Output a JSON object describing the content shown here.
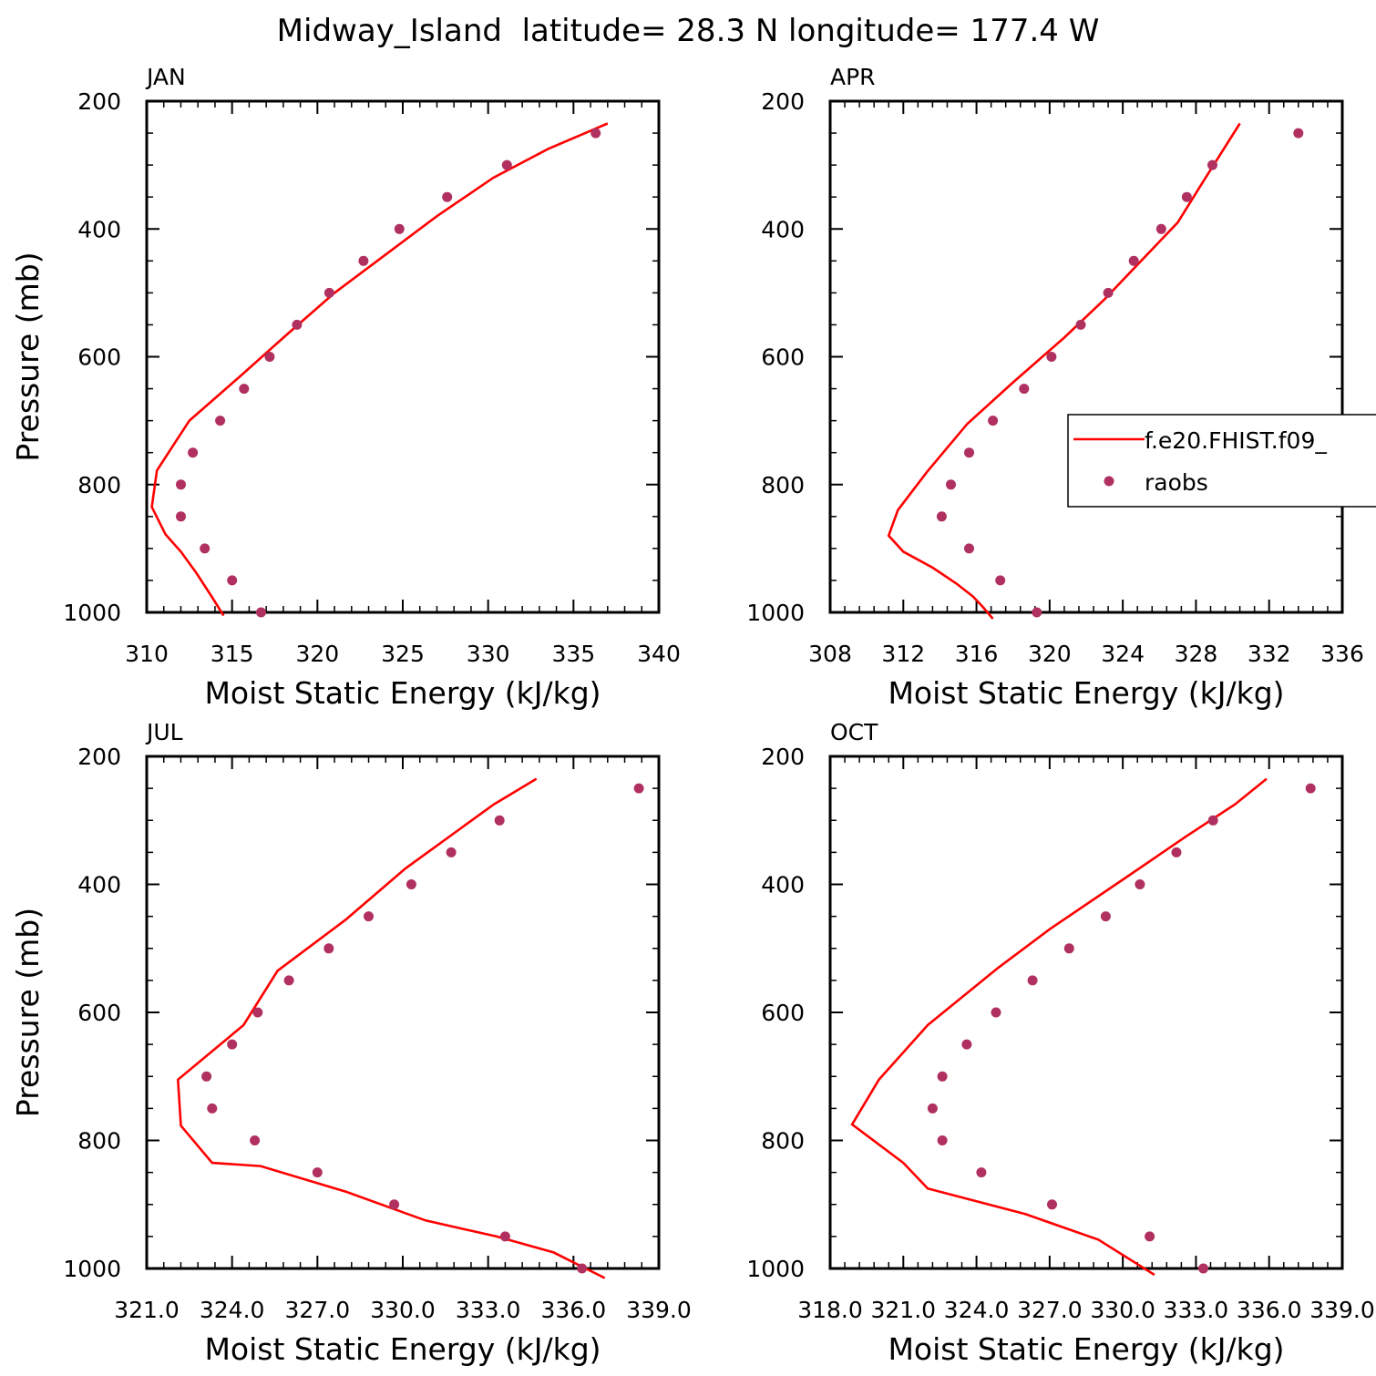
{
  "figure": {
    "title": "Midway_Island  latitude= 28.3 N longitude= 177.4 W"
  },
  "legend": {
    "model_label": "f.e20.FHIST.f09_",
    "obs_label": "raobs",
    "placement": "right side of APR panel, clipped by figure edge"
  },
  "colors": {
    "model_line": "#ff0000",
    "obs_points": "#b03060",
    "axes": "#000000"
  },
  "chart_data": [
    {
      "type": "line",
      "panel": "JAN",
      "title": "JAN",
      "xlabel": "Moist Static Energy (kJ/kg)",
      "ylabel": "Pressure (mb)",
      "xlim": [
        310,
        340
      ],
      "ylim": [
        1000,
        200
      ],
      "y_reversed": true,
      "xticks": [
        "310",
        "315",
        "320",
        "325",
        "330",
        "335",
        "340"
      ],
      "yticks": [
        "200",
        "400",
        "600",
        "800",
        "1000"
      ],
      "series": [
        {
          "kind": "line",
          "x": [
            314.5,
            313.8,
            312.9,
            312.0,
            311.1,
            310.3,
            310.6,
            312.5,
            315.5,
            318.3,
            321.0,
            324.0,
            327.0,
            330.3,
            333.5,
            337.0
          ],
          "y": [
            1005,
            975,
            938,
            905,
            878,
            835,
            778,
            700,
            630,
            563,
            500,
            440,
            380,
            320,
            275,
            235
          ]
        },
        {
          "kind": "scatter",
          "x": [
            316.7,
            315.0,
            313.4,
            312.0,
            312.0,
            312.7,
            314.3,
            315.7,
            317.2,
            318.8,
            320.7,
            322.7,
            324.8,
            327.6,
            331.1,
            336.3
          ],
          "y": [
            1000,
            950,
            900,
            850,
            800,
            750,
            700,
            650,
            600,
            550,
            500,
            450,
            400,
            350,
            300,
            250
          ]
        }
      ]
    },
    {
      "type": "line",
      "panel": "APR",
      "title": "APR",
      "xlabel": "Moist Static Energy (kJ/kg)",
      "ylabel": "",
      "xlim": [
        308,
        336
      ],
      "ylim": [
        1000,
        200
      ],
      "y_reversed": true,
      "xticks": [
        "308",
        "312",
        "316",
        "320",
        "324",
        "328",
        "332",
        "336"
      ],
      "yticks": [
        "200",
        "400",
        "600",
        "800",
        "1000"
      ],
      "series": [
        {
          "kind": "line",
          "x": [
            316.9,
            316.3,
            315.8,
            314.9,
            313.6,
            312.0,
            311.2,
            311.7,
            313.3,
            315.5,
            318.0,
            320.8,
            323.0,
            325.0,
            327.0,
            328.3,
            330.4
          ],
          "y": [
            1010,
            990,
            975,
            955,
            930,
            905,
            880,
            840,
            780,
            705,
            640,
            570,
            510,
            450,
            390,
            330,
            235
          ]
        },
        {
          "kind": "scatter",
          "x": [
            319.3,
            317.3,
            315.6,
            314.1,
            314.6,
            315.6,
            316.9,
            318.6,
            320.1,
            321.7,
            323.2,
            324.6,
            326.1,
            327.5,
            328.9,
            333.6
          ],
          "y": [
            1000,
            950,
            900,
            850,
            800,
            750,
            700,
            650,
            600,
            550,
            500,
            450,
            400,
            350,
            300,
            250
          ]
        }
      ]
    },
    {
      "type": "line",
      "panel": "JUL",
      "title": "JUL",
      "xlabel": "Moist Static Energy (kJ/kg)",
      "ylabel": "Pressure (mb)",
      "xlim": [
        321,
        339
      ],
      "ylim": [
        1000,
        200
      ],
      "y_reversed": true,
      "xticks": [
        "321.0",
        "324.0",
        "327.0",
        "330.0",
        "333.0",
        "336.0",
        "339.0"
      ],
      "yticks": [
        "200",
        "400",
        "600",
        "800",
        "1000"
      ],
      "series": [
        {
          "kind": "line",
          "x": [
            337.1,
            335.3,
            333.3,
            330.8,
            328.0,
            325.0,
            323.3,
            322.2,
            322.1,
            324.4,
            325.6,
            328.0,
            330.1,
            333.2,
            334.7
          ],
          "y": [
            1015,
            975,
            950,
            925,
            880,
            840,
            835,
            777,
            705,
            620,
            535,
            455,
            375,
            275,
            235
          ]
        },
        {
          "kind": "scatter",
          "x": [
            336.3,
            333.6,
            329.7,
            327.0,
            324.8,
            323.3,
            323.1,
            324.0,
            324.9,
            326.0,
            327.4,
            328.8,
            330.3,
            331.7,
            333.4,
            338.3
          ],
          "y": [
            1000,
            950,
            900,
            850,
            800,
            750,
            700,
            650,
            600,
            550,
            500,
            450,
            400,
            350,
            300,
            250
          ]
        }
      ]
    },
    {
      "type": "line",
      "panel": "OCT",
      "title": "OCT",
      "xlabel": "Moist Static Energy (kJ/kg)",
      "ylabel": "",
      "xlim": [
        318,
        339
      ],
      "ylim": [
        1000,
        200
      ],
      "y_reversed": true,
      "xticks": [
        "318.0",
        "321.0",
        "324.0",
        "327.0",
        "330.0",
        "333.0",
        "336.0",
        "339.0"
      ],
      "yticks": [
        "200",
        "400",
        "600",
        "800",
        "1000"
      ],
      "series": [
        {
          "kind": "line",
          "x": [
            331.3,
            329.0,
            326.0,
            322.0,
            321.0,
            318.9,
            320.0,
            322.0,
            324.9,
            327.0,
            330.1,
            332.6,
            334.6,
            335.9
          ],
          "y": [
            1010,
            955,
            915,
            875,
            835,
            775,
            705,
            620,
            530,
            470,
            390,
            325,
            275,
            235
          ]
        },
        {
          "kind": "scatter",
          "x": [
            333.3,
            331.1,
            327.1,
            324.2,
            322.6,
            322.2,
            322.6,
            323.6,
            324.8,
            326.3,
            327.8,
            329.3,
            330.7,
            332.2,
            333.7,
            337.7
          ],
          "y": [
            1000,
            950,
            900,
            850,
            800,
            750,
            700,
            650,
            600,
            550,
            500,
            450,
            400,
            350,
            300,
            250
          ]
        }
      ]
    }
  ]
}
